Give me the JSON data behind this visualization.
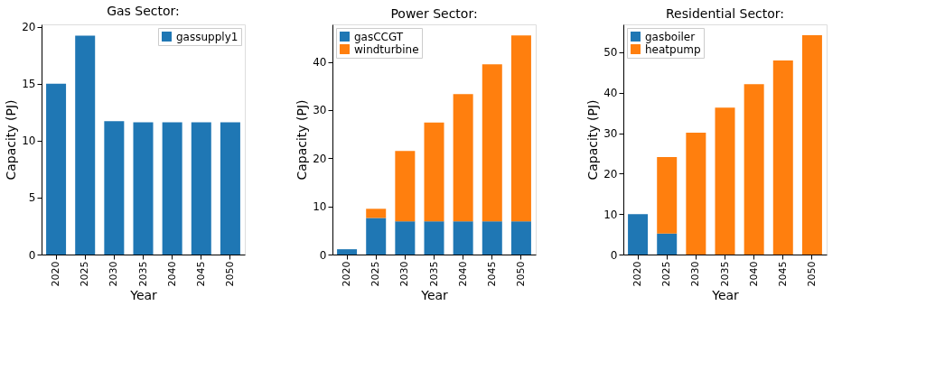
{
  "chart_data": [
    {
      "type": "bar",
      "title": "Gas Sector:",
      "xlabel": "Year",
      "ylabel": "Capacity (PJ)",
      "categories": [
        "2020",
        "2025",
        "2030",
        "2035",
        "2040",
        "2045",
        "2050"
      ],
      "series": [
        {
          "name": "gassupply1",
          "color": "#1f77b4",
          "values": [
            15,
            19.2,
            11.7,
            11.6,
            11.6,
            11.6,
            11.6
          ]
        }
      ],
      "stacked": true,
      "ylim": [
        0,
        20.2
      ],
      "yticks": [
        0,
        5,
        10,
        15,
        20
      ],
      "grid": false,
      "legend": "top right"
    },
    {
      "type": "bar",
      "title": "Power Sector:",
      "xlabel": "Year",
      "ylabel": "Capacity (PJ)",
      "categories": [
        "2020",
        "2025",
        "2030",
        "2035",
        "2040",
        "2045",
        "2050"
      ],
      "series": [
        {
          "name": "gasCCGT",
          "color": "#1f77b4",
          "values": [
            1.1,
            7.6,
            6.9,
            6.9,
            6.9,
            6.9,
            6.9
          ]
        },
        {
          "name": "windturbine",
          "color": "#ff7f0e",
          "values": [
            0,
            1.9,
            14.6,
            20.5,
            26.4,
            32.6,
            38.6
          ]
        }
      ],
      "stacked": true,
      "ylim": [
        0,
        47.8
      ],
      "yticks": [
        0,
        10,
        20,
        30,
        40
      ],
      "grid": false,
      "legend": "top left"
    },
    {
      "type": "bar",
      "title": "Residential Sector:",
      "xlabel": "Year",
      "ylabel": "Capacity (PJ)",
      "categories": [
        "2020",
        "2025",
        "2030",
        "2035",
        "2040",
        "2045",
        "2050"
      ],
      "series": [
        {
          "name": "gasboiler",
          "color": "#1f77b4",
          "values": [
            10,
            5.2,
            0,
            0,
            0,
            0,
            0
          ]
        },
        {
          "name": "heatpump",
          "color": "#ff7f0e",
          "values": [
            0,
            18.9,
            30.1,
            36.3,
            42.1,
            48.0,
            54.2
          ]
        }
      ],
      "stacked": true,
      "ylim": [
        0,
        56.9
      ],
      "yticks": [
        0,
        10,
        20,
        30,
        40,
        50
      ],
      "grid": false,
      "legend": "top left"
    }
  ]
}
